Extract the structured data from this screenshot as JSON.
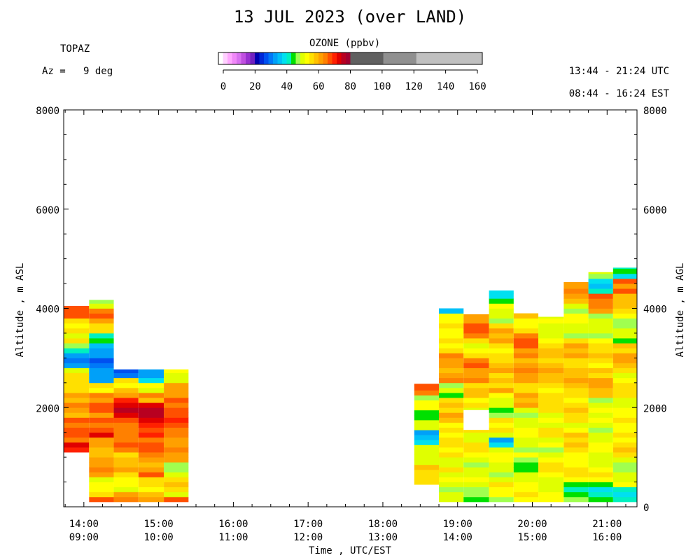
{
  "header": {
    "title": "13 JUL 2023 (over LAND)",
    "station": "TOPAZ",
    "azimuth_text": "Az =   9 deg",
    "utc_range": "13:44 - 21:24 UTC",
    "est_range": "08:44 - 16:24 EST"
  },
  "colorbar": {
    "title": "OZONE (ppbv)",
    "tick_labels": [
      "0",
      "20",
      "40",
      "60",
      "80",
      "100",
      "120",
      "140",
      "160"
    ],
    "range": [
      0,
      160
    ],
    "bins": [
      {
        "from": 0,
        "to": 2.5,
        "color": "#ffffff"
      },
      {
        "from": 2.5,
        "to": 5,
        "color": "#ffd0ff"
      },
      {
        "from": 5,
        "to": 7.5,
        "color": "#ffa8ff"
      },
      {
        "from": 7.5,
        "to": 10,
        "color": "#f088f8"
      },
      {
        "from": 10,
        "to": 12.5,
        "color": "#d870f0"
      },
      {
        "from": 12.5,
        "to": 15,
        "color": "#c050e0"
      },
      {
        "from": 15,
        "to": 17.5,
        "color": "#9830d0"
      },
      {
        "from": 17.5,
        "to": 20,
        "color": "#7020c0"
      },
      {
        "from": 20,
        "to": 22.5,
        "color": "#0000b0"
      },
      {
        "from": 22.5,
        "to": 25,
        "color": "#0028d8"
      },
      {
        "from": 25,
        "to": 27.5,
        "color": "#0050f0"
      },
      {
        "from": 27.5,
        "to": 30,
        "color": "#0078f8"
      },
      {
        "from": 30,
        "to": 32.5,
        "color": "#00a0f8"
      },
      {
        "from": 32.5,
        "to": 35,
        "color": "#00c0f8"
      },
      {
        "from": 35,
        "to": 37.5,
        "color": "#00e0f0"
      },
      {
        "from": 37.5,
        "to": 40,
        "color": "#00f0c0"
      },
      {
        "from": 40,
        "to": 42.5,
        "color": "#00e000"
      },
      {
        "from": 42.5,
        "to": 45,
        "color": "#a0ff50"
      },
      {
        "from": 45,
        "to": 47.5,
        "color": "#e0ff00"
      },
      {
        "from": 47.5,
        "to": 50,
        "color": "#ffff00"
      },
      {
        "from": 50,
        "to": 52.5,
        "color": "#ffe000"
      },
      {
        "from": 52.5,
        "to": 55,
        "color": "#ffc000"
      },
      {
        "from": 55,
        "to": 57.5,
        "color": "#ffa000"
      },
      {
        "from": 57.5,
        "to": 60,
        "color": "#ff8000"
      },
      {
        "from": 60,
        "to": 62.5,
        "color": "#ff5000"
      },
      {
        "from": 62.5,
        "to": 65,
        "color": "#ff2000"
      },
      {
        "from": 65,
        "to": 67.5,
        "color": "#e00000"
      },
      {
        "from": 67.5,
        "to": 70,
        "color": "#b80020"
      },
      {
        "from": 70,
        "to": 80,
        "color": "#a00030"
      },
      {
        "from": 80,
        "to": 100,
        "color": "#606060"
      },
      {
        "from": 100,
        "to": 120,
        "color": "#909090"
      },
      {
        "from": 120,
        "to": 160,
        "color": "#c0c0c0"
      }
    ]
  },
  "axes": {
    "y_label_left": "Altitude , m ASL",
    "y_label_right": "Altitude , m AGL",
    "x_label": "Time , UTC/EST"
  },
  "chart_data": {
    "type": "heatmap",
    "title": "13 JUL 2023 (over LAND)",
    "xlabel": "Time , UTC/EST",
    "ylabel": "Altitude , m ASL",
    "ylabel_right": "Altitude , m AGL",
    "xlim_utc_hours": [
      13.73,
      21.4
    ],
    "ylim": [
      0,
      8000
    ],
    "y_ticks_left": [
      2000,
      4000,
      6000,
      8000
    ],
    "y_ticks_right": [
      0,
      2000,
      4000,
      6000,
      8000
    ],
    "y_right_offset_m": 1000,
    "x_ticks": [
      {
        "utc": "14:00",
        "est": "09:00"
      },
      {
        "utc": "15:00",
        "est": "10:00"
      },
      {
        "utc": "16:00",
        "est": "11:00"
      },
      {
        "utc": "17:00",
        "est": "12:00"
      },
      {
        "utc": "18:00",
        "est": "13:00"
      },
      {
        "utc": "19:00",
        "est": "14:00"
      },
      {
        "utc": "20:00",
        "est": "15:00"
      },
      {
        "utc": "21:00",
        "est": "16:00"
      }
    ],
    "profile_altitude_step_m": 100,
    "profiles": [
      {
        "t0": 13.73,
        "t1": 14.07,
        "bottom": 1100,
        "top": 4050,
        "layers": [
          [
            1100,
            1300,
            66
          ],
          [
            1300,
            1800,
            60
          ],
          [
            1800,
            2100,
            56
          ],
          [
            2100,
            2500,
            53
          ],
          [
            2500,
            2700,
            50
          ],
          [
            2700,
            2850,
            42
          ],
          [
            2850,
            3100,
            31
          ],
          [
            3100,
            3300,
            41
          ],
          [
            3300,
            3500,
            47
          ],
          [
            3500,
            3800,
            51
          ],
          [
            3800,
            4050,
            60
          ]
        ]
      },
      {
        "t0": 14.07,
        "t1": 14.4,
        "bottom": 100,
        "top": 4170,
        "layers": [
          [
            100,
            250,
            57
          ],
          [
            250,
            650,
            50
          ],
          [
            650,
            900,
            55
          ],
          [
            900,
            1400,
            56
          ],
          [
            1400,
            1800,
            62
          ],
          [
            1800,
            2300,
            58
          ],
          [
            2300,
            2550,
            52
          ],
          [
            2550,
            3300,
            30
          ],
          [
            3300,
            3500,
            40
          ],
          [
            3500,
            3800,
            53
          ],
          [
            3800,
            4000,
            58
          ],
          [
            4000,
            4170,
            47
          ]
        ]
      },
      {
        "t0": 14.4,
        "t1": 14.73,
        "bottom": 100,
        "top": 2770,
        "layers": [
          [
            100,
            300,
            55
          ],
          [
            300,
            700,
            50
          ],
          [
            700,
            1100,
            54
          ],
          [
            1100,
            1500,
            58
          ],
          [
            1500,
            1800,
            61
          ],
          [
            1800,
            2200,
            66
          ],
          [
            2200,
            2400,
            56
          ],
          [
            2400,
            2600,
            47
          ],
          [
            2600,
            2700,
            30
          ],
          [
            2700,
            2770,
            26
          ]
        ]
      },
      {
        "t0": 14.73,
        "t1": 15.07,
        "bottom": 100,
        "top": 2770,
        "layers": [
          [
            100,
            300,
            56
          ],
          [
            300,
            600,
            51
          ],
          [
            600,
            1000,
            57
          ],
          [
            1000,
            1400,
            60
          ],
          [
            1400,
            1800,
            64
          ],
          [
            1800,
            2150,
            67
          ],
          [
            2150,
            2350,
            57
          ],
          [
            2350,
            2500,
            46
          ],
          [
            2500,
            2650,
            36
          ],
          [
            2650,
            2770,
            33
          ]
        ]
      },
      {
        "t0": 15.07,
        "t1": 15.4,
        "bottom": 100,
        "top": 2770,
        "layers": [
          [
            100,
            250,
            62
          ],
          [
            250,
            600,
            50
          ],
          [
            600,
            900,
            45
          ],
          [
            900,
            1300,
            55
          ],
          [
            1300,
            1800,
            60
          ],
          [
            1800,
            2200,
            62
          ],
          [
            2200,
            2500,
            55
          ],
          [
            2500,
            2770,
            49
          ]
        ]
      },
      {
        "t0": 18.42,
        "t1": 18.75,
        "bottom": 450,
        "top": 2480,
        "layers": [
          [
            450,
            900,
            50
          ],
          [
            900,
            1300,
            47
          ],
          [
            1300,
            1550,
            33
          ],
          [
            1550,
            1800,
            48
          ],
          [
            1800,
            2000,
            40
          ],
          [
            2000,
            2300,
            47
          ],
          [
            2300,
            2480,
            60
          ]
        ]
      },
      {
        "t0": 18.75,
        "t1": 19.08,
        "bottom": 100,
        "top": 4000,
        "layers": [
          [
            100,
            700,
            46
          ],
          [
            700,
            1300,
            49
          ],
          [
            1300,
            1800,
            51
          ],
          [
            1800,
            2200,
            53
          ],
          [
            2200,
            2500,
            43
          ],
          [
            2500,
            3100,
            56
          ],
          [
            3100,
            3500,
            51
          ],
          [
            3500,
            3900,
            48
          ],
          [
            3900,
            4000,
            36
          ]
        ]
      },
      {
        "t0": 19.08,
        "t1": 19.42,
        "bottom": 100,
        "top": 3880,
        "layers": [
          [
            100,
            600,
            45
          ],
          [
            600,
            1100,
            46
          ],
          [
            1100,
            1600,
            49
          ],
          [
            1600,
            2000,
            47
          ],
          [
            2000,
            2500,
            51
          ],
          [
            2500,
            3000,
            58
          ],
          [
            3000,
            3400,
            50
          ],
          [
            3400,
            3880,
            58
          ]
        ]
      },
      {
        "t0": 19.42,
        "t1": 19.75,
        "bottom": 100,
        "top": 4360,
        "layers": [
          [
            100,
            600,
            47
          ],
          [
            600,
            1200,
            46
          ],
          [
            1200,
            1450,
            35
          ],
          [
            1450,
            1800,
            48
          ],
          [
            1800,
            2300,
            45
          ],
          [
            2300,
            2800,
            54
          ],
          [
            2800,
            3300,
            51
          ],
          [
            3300,
            3700,
            53
          ],
          [
            3700,
            4150,
            46
          ],
          [
            4150,
            4360,
            38
          ]
        ]
      },
      {
        "t0": 19.75,
        "t1": 20.08,
        "bottom": 100,
        "top": 3900,
        "layers": [
          [
            100,
            700,
            48
          ],
          [
            700,
            1000,
            41
          ],
          [
            1000,
            1500,
            47
          ],
          [
            1500,
            2000,
            46
          ],
          [
            2000,
            2500,
            53
          ],
          [
            2500,
            3000,
            55
          ],
          [
            3000,
            3500,
            59
          ],
          [
            3500,
            3900,
            51
          ]
        ]
      },
      {
        "t0": 20.08,
        "t1": 20.42,
        "bottom": 100,
        "top": 3830,
        "layers": [
          [
            100,
            500,
            46
          ],
          [
            500,
            900,
            49
          ],
          [
            900,
            1500,
            47
          ],
          [
            1500,
            2100,
            49
          ],
          [
            2100,
            2700,
            52
          ],
          [
            2700,
            3200,
            54
          ],
          [
            3200,
            3830,
            47
          ]
        ]
      },
      {
        "t0": 20.42,
        "t1": 20.75,
        "bottom": 100,
        "top": 4530,
        "layers": [
          [
            100,
            500,
            41
          ],
          [
            500,
            1000,
            49
          ],
          [
            1000,
            1600,
            51
          ],
          [
            1600,
            2200,
            50
          ],
          [
            2200,
            2800,
            53
          ],
          [
            2800,
            3400,
            53
          ],
          [
            3400,
            4100,
            46
          ],
          [
            4100,
            4530,
            55
          ]
        ]
      },
      {
        "t0": 20.75,
        "t1": 21.08,
        "bottom": 100,
        "top": 4730,
        "layers": [
          [
            100,
            500,
            40
          ],
          [
            500,
            1000,
            48
          ],
          [
            1000,
            1600,
            46
          ],
          [
            1600,
            2200,
            46
          ],
          [
            2200,
            2800,
            54
          ],
          [
            2800,
            3400,
            51
          ],
          [
            3400,
            3900,
            45
          ],
          [
            3900,
            4300,
            58
          ],
          [
            4300,
            4600,
            36
          ],
          [
            4600,
            4730,
            46
          ]
        ]
      },
      {
        "t0": 21.08,
        "t1": 21.4,
        "bottom": 100,
        "top": 4820,
        "layers": [
          [
            100,
            450,
            40
          ],
          [
            450,
            1000,
            46
          ],
          [
            1000,
            1600,
            51
          ],
          [
            1600,
            2200,
            48
          ],
          [
            2200,
            2800,
            50
          ],
          [
            2800,
            3300,
            54
          ],
          [
            3300,
            3800,
            44
          ],
          [
            3800,
            4300,
            52
          ],
          [
            4300,
            4650,
            60
          ],
          [
            4650,
            4820,
            38
          ]
        ]
      }
    ],
    "gap": {
      "t0": 19.08,
      "t1": 19.42,
      "from": 1550,
      "to": 1950,
      "description": "no data"
    }
  }
}
